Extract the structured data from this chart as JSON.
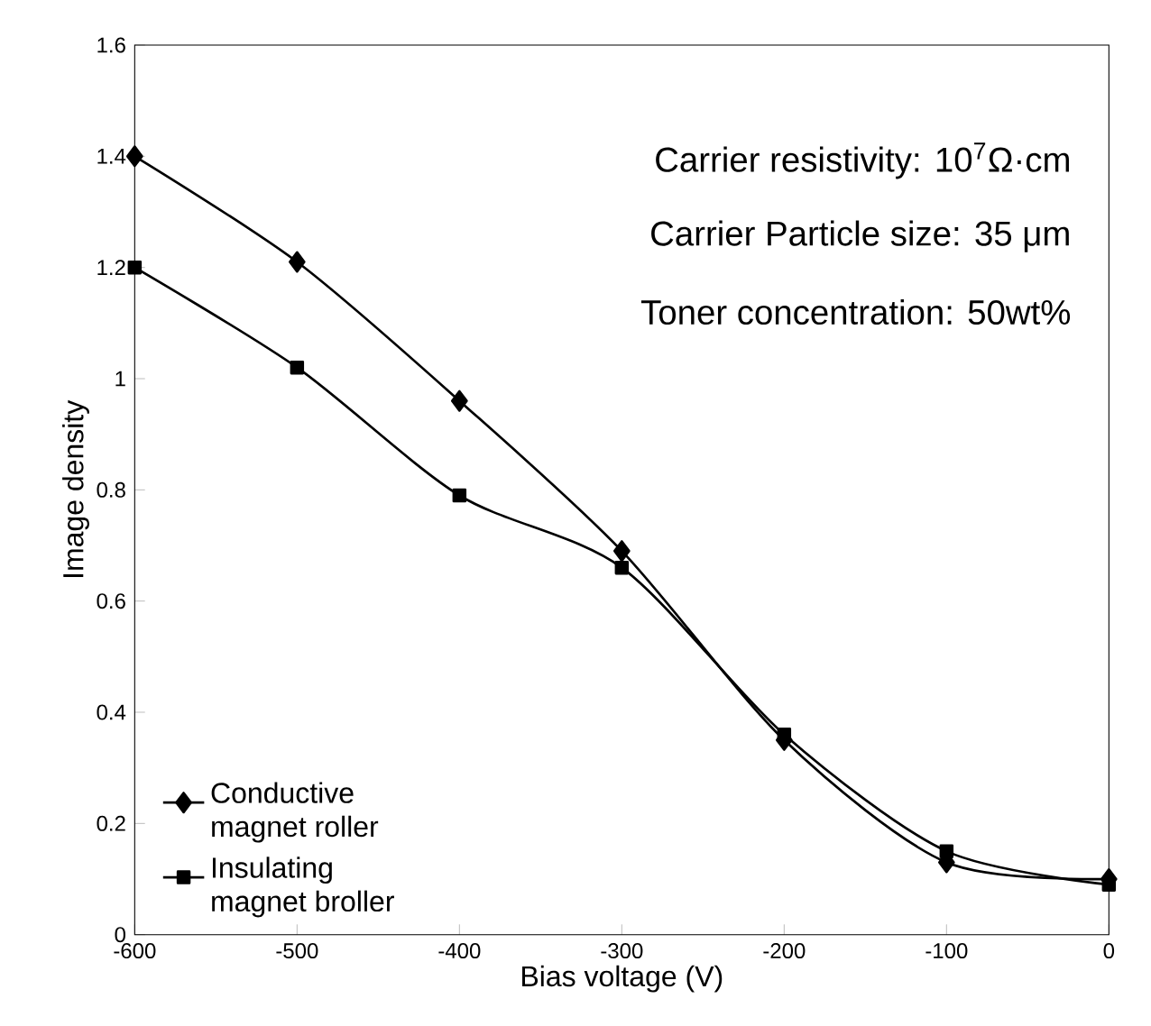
{
  "chart_data": {
    "type": "line",
    "xlabel": "Bias voltage (V)",
    "ylabel": "Image density",
    "x": [
      -600,
      -500,
      -400,
      -300,
      -200,
      -100,
      0
    ],
    "series": [
      {
        "name": "Conductive magnet roller",
        "color": "#000000",
        "marker": "diamond",
        "values": [
          1.4,
          1.21,
          0.96,
          0.69,
          0.35,
          0.13,
          0.1
        ]
      },
      {
        "name": "Insulating magnet broller",
        "color": "#000000",
        "marker": "square",
        "values": [
          1.2,
          1.02,
          0.79,
          0.66,
          0.36,
          0.15,
          0.09
        ]
      }
    ],
    "xlim": [
      -600,
      0
    ],
    "xticks": [
      -600,
      -500,
      -400,
      -300,
      -200,
      -100,
      0
    ],
    "ylim": [
      0,
      1.6
    ],
    "yticks": [
      0,
      0.2,
      0.4,
      0.6,
      0.8,
      1,
      1.2,
      1.4,
      1.6
    ],
    "grid": false,
    "legend": "bottom left",
    "line_style": "solid",
    "annotations": [
      "Carrier resistivity: 10$^{7}$Ω·cm",
      "Carrier Particle size: 35 μm",
      "Toner concentration: 50wt%"
    ]
  }
}
